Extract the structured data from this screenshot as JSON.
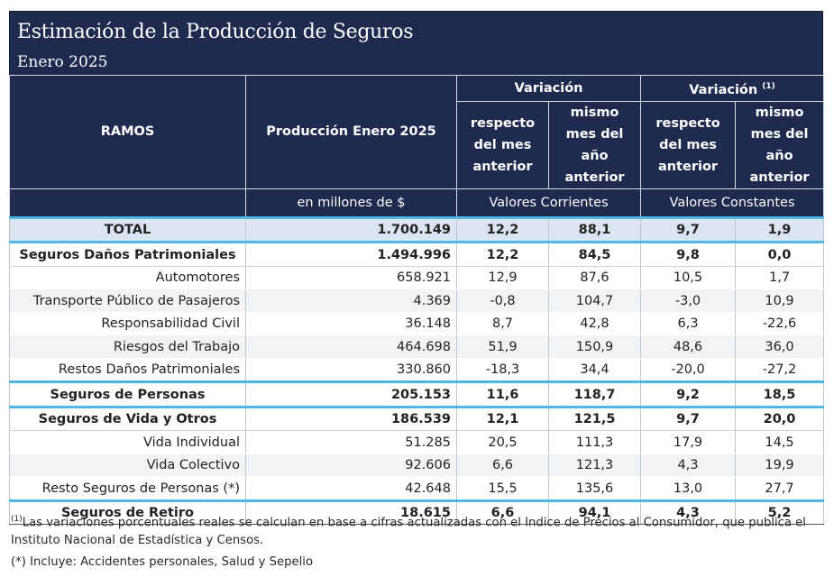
{
  "header": {
    "title": "Estimación de la Producción de Seguros",
    "subtitle": "Enero 2025"
  },
  "columns": {
    "ramos": "RAMOS",
    "produccion": "Producción Enero 2025",
    "variacion": "Variación",
    "variacion_real": "Variación",
    "variacion_real_mark": "(1)",
    "respecto_mes_anterior": "respecto del mes anterior",
    "mismo_mes_anio_anterior": "mismo mes del año anterior",
    "unit_produccion": "en millones de $",
    "unit_corrientes": "Valores Corrientes",
    "unit_constantes": "Valores Constantes"
  },
  "rows": [
    {
      "type": "total",
      "name": "TOTAL",
      "produccion": "1.700.149",
      "vc_mes": "12,2",
      "vc_anio": "88,1",
      "vk_mes": "9,7",
      "vk_anio": "1,9"
    },
    {
      "type": "group",
      "name": "Seguros Daños Patrimoniales",
      "produccion": "1.494.996",
      "vc_mes": "12,2",
      "vc_anio": "84,5",
      "vk_mes": "9,8",
      "vk_anio": "0,0"
    },
    {
      "type": "sub",
      "name": "Automotores",
      "produccion": "658.921",
      "vc_mes": "12,9",
      "vc_anio": "87,6",
      "vk_mes": "10,5",
      "vk_anio": "1,7"
    },
    {
      "type": "sub",
      "name": "Transporte Público de Pasajeros",
      "produccion": "4.369",
      "vc_mes": "-0,8",
      "vc_anio": "104,7",
      "vk_mes": "-3,0",
      "vk_anio": "10,9"
    },
    {
      "type": "sub",
      "name": "Responsabilidad Civil",
      "produccion": "36.148",
      "vc_mes": "8,7",
      "vc_anio": "42,8",
      "vk_mes": "6,3",
      "vk_anio": "-22,6"
    },
    {
      "type": "sub",
      "name": "Riesgos del Trabajo",
      "produccion": "464.698",
      "vc_mes": "51,9",
      "vc_anio": "150,9",
      "vk_mes": "48,6",
      "vk_anio": "36,0"
    },
    {
      "type": "sub",
      "name": "Restos Daños Patrimoniales",
      "produccion": "330.860",
      "vc_mes": "-18,3",
      "vc_anio": "34,4",
      "vk_mes": "-20,0",
      "vk_anio": "-27,2"
    },
    {
      "type": "group",
      "name": "Seguros de Personas",
      "produccion": "205.153",
      "vc_mes": "11,6",
      "vc_anio": "118,7",
      "vk_mes": "9,2",
      "vk_anio": "18,5"
    },
    {
      "type": "group",
      "name": "Seguros de Vida y Otros",
      "produccion": "186.539",
      "vc_mes": "12,1",
      "vc_anio": "121,5",
      "vk_mes": "9,7",
      "vk_anio": "20,0"
    },
    {
      "type": "sub",
      "name": "Vida Individual",
      "produccion": "51.285",
      "vc_mes": "20,5",
      "vc_anio": "111,3",
      "vk_mes": "17,9",
      "vk_anio": "14,5"
    },
    {
      "type": "sub",
      "name": "Vida Colectivo",
      "produccion": "92.606",
      "vc_mes": "6,6",
      "vc_anio": "121,3",
      "vk_mes": "4,3",
      "vk_anio": "19,9"
    },
    {
      "type": "sub",
      "name": "Resto Seguros de Personas (*)",
      "produccion": "42.648",
      "vc_mes": "15,5",
      "vc_anio": "135,6",
      "vk_mes": "13,0",
      "vk_anio": "27,7"
    },
    {
      "type": "group",
      "name": "Seguros de Retiro",
      "produccion": "18.615",
      "vc_mes": "6,6",
      "vc_anio": "94,1",
      "vk_mes": "4,3",
      "vk_anio": "5,2"
    }
  ],
  "notes": {
    "note1_mark": "(1)",
    "note1_text": "Las variaciones porcentuales reales se calculan en base a cifras actualizadas con  el Indice de Precios al Consumidor, que publica el",
    "note2_text": "Instituto Nacional de Estadística y  Censos.",
    "note3_text": "(*) Incluye: Accidentes personales, Salud y Sepelio"
  }
}
